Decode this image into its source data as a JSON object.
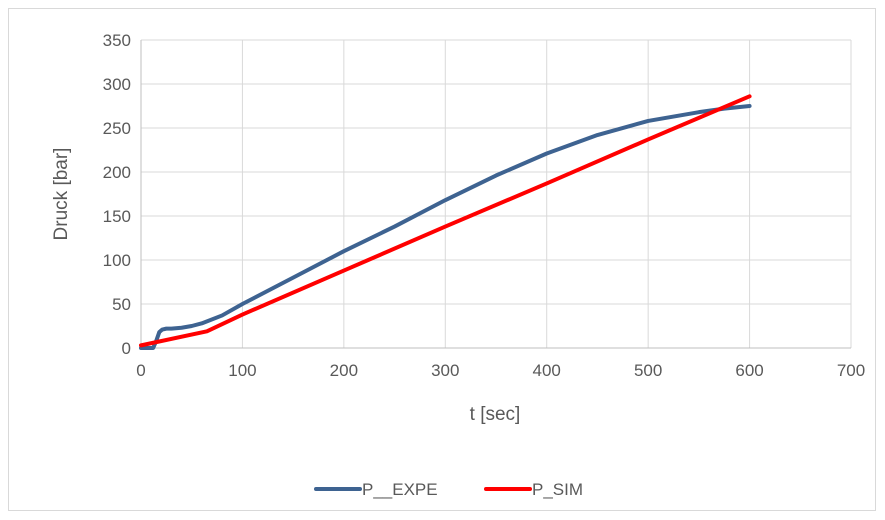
{
  "chart_data": {
    "type": "line",
    "title": "",
    "xlabel": "t [sec]",
    "ylabel": "Druck [bar]",
    "xlim": [
      0,
      700
    ],
    "ylim": [
      0,
      350
    ],
    "xticks": [
      0,
      100,
      200,
      300,
      400,
      500,
      600,
      700
    ],
    "yticks": [
      0,
      50,
      100,
      150,
      200,
      250,
      300,
      350
    ],
    "grid": "both",
    "legend_position": "bottom",
    "series": [
      {
        "name": "P__EXPE",
        "color": "#3e6391",
        "x": [
          0,
          12,
          15,
          18,
          21,
          25,
          30,
          40,
          50,
          60,
          80,
          100,
          150,
          200,
          250,
          300,
          350,
          400,
          450,
          500,
          550,
          575,
          600
        ],
        "y": [
          0,
          0,
          8,
          18,
          21,
          22,
          22,
          23,
          25,
          28,
          37,
          50,
          80,
          110,
          138,
          168,
          196,
          221,
          242,
          258,
          268,
          272,
          275
        ]
      },
      {
        "name": "P_SIM",
        "color": "#ff0000",
        "x": [
          0,
          65,
          100,
          200,
          300,
          400,
          500,
          600
        ],
        "y": [
          3,
          19,
          38,
          88,
          138,
          187,
          237,
          286
        ]
      }
    ]
  }
}
